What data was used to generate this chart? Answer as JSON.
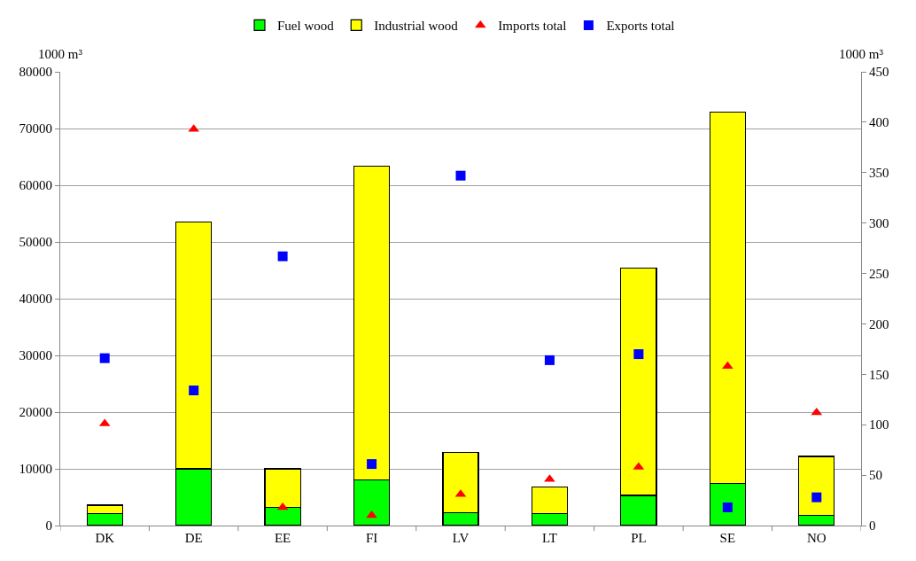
{
  "chart_data": {
    "type": "bar",
    "stacked": true,
    "categories": [
      "DK",
      "DE",
      "EE",
      "FI",
      "LV",
      "LT",
      "PL",
      "SE",
      "NO"
    ],
    "ylabel": "1000 m³",
    "y2label": "1000 m³",
    "series": [
      {
        "name": "Fuel wood",
        "color": "#00ff00",
        "values": [
          2100,
          10000,
          3200,
          8000,
          2300,
          2100,
          5300,
          7400,
          1800
        ]
      },
      {
        "name": "Industrial wood",
        "color": "#ffff00",
        "values": [
          1500,
          43500,
          6800,
          55300,
          10600,
          4700,
          40100,
          65500,
          10400
        ]
      },
      {
        "name": "Imports total",
        "type": "scatter",
        "marker": "triangle",
        "axis": "y2",
        "color": "#ff0000",
        "values": [
          101,
          393,
          18,
          10,
          31,
          46,
          58,
          158,
          112
        ]
      },
      {
        "name": "Exports total",
        "type": "scatter",
        "marker": "square",
        "axis": "y2",
        "color": "#0000ff",
        "values": [
          166,
          134,
          267,
          61,
          347,
          164,
          170,
          18,
          28
        ]
      }
    ],
    "ylim": [
      0,
      80000
    ],
    "yticks": [
      0,
      10000,
      20000,
      30000,
      40000,
      50000,
      60000,
      70000,
      80000
    ],
    "y2lim": [
      0,
      450
    ],
    "y2ticks": [
      0,
      50,
      100,
      150,
      200,
      250,
      300,
      350,
      400,
      450
    ],
    "grid": "y",
    "legend": "top"
  }
}
